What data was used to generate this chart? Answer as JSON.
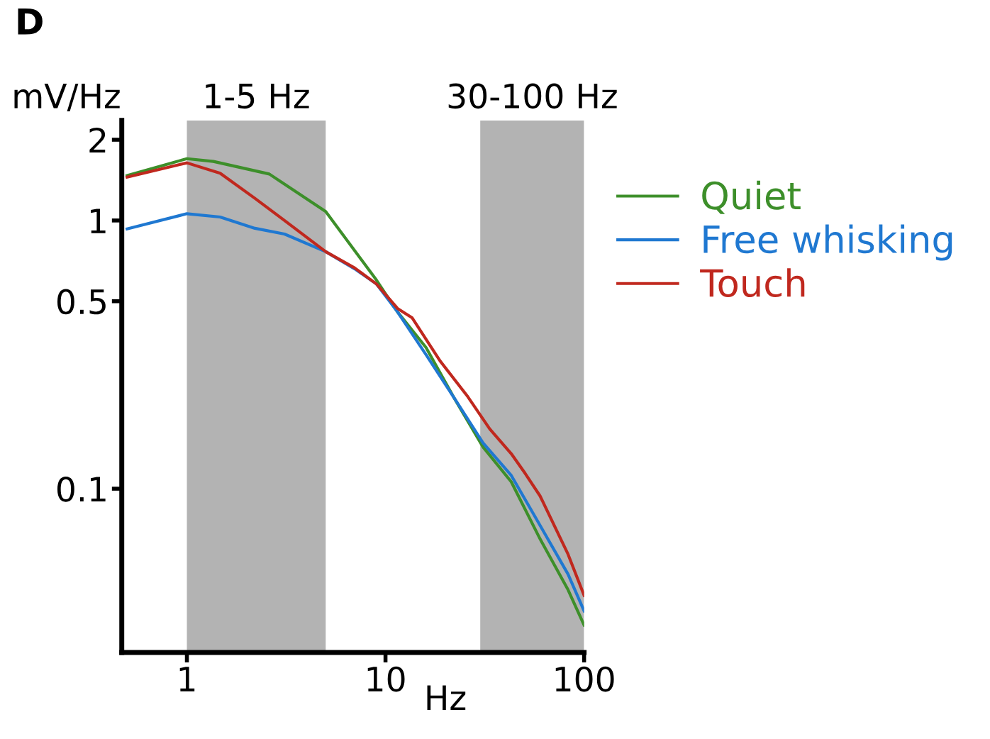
{
  "chart_data": {
    "type": "line",
    "title": "D",
    "ylabel": "mV/Hz",
    "xlabel": "Hz",
    "log": "xy",
    "xlim": [
      0.47,
      100
    ],
    "xticks": [
      1,
      10,
      100
    ],
    "ylim": [
      0.0245,
      2.36
    ],
    "yticks": [
      0.1,
      0.5,
      1,
      2
    ],
    "grid": false,
    "legend": "right",
    "line_style": "solid",
    "marker": "none",
    "bands": [
      {
        "axis": "x",
        "from": 1,
        "to": 5,
        "label": "1-5 Hz",
        "color": "#b3b3b3"
      },
      {
        "axis": "x",
        "from": 30,
        "to": 100,
        "label": "30-100 Hz",
        "color": "#b3b3b3"
      }
    ],
    "series": [
      {
        "name": "Quiet",
        "color": "#3d8f2a",
        "x": [
          0.5,
          1,
          1.36,
          2.6,
          5.0,
          9.0,
          11.5,
          16,
          22,
          31,
          43,
          60,
          83,
          100
        ],
        "values": [
          1.47,
          1.7,
          1.66,
          1.49,
          1.08,
          0.6,
          0.456,
          0.336,
          0.22,
          0.143,
          0.106,
          0.065,
          0.042,
          0.031
        ]
      },
      {
        "name": "Free whisking",
        "color": "#1f78d1",
        "x": [
          0.5,
          1,
          1.47,
          2.2,
          3.1,
          5.0,
          7.0,
          9.0,
          11.5,
          16,
          22,
          31,
          43,
          60,
          83,
          100
        ],
        "values": [
          0.93,
          1.06,
          1.03,
          0.935,
          0.89,
          0.765,
          0.66,
          0.58,
          0.456,
          0.316,
          0.22,
          0.148,
          0.112,
          0.073,
          0.048,
          0.035
        ]
      },
      {
        "name": "Touch",
        "color": "#c0281e",
        "x": [
          0.5,
          1,
          1.47,
          2.2,
          3.1,
          5.0,
          7.0,
          9.0,
          11.5,
          13.6,
          18.8,
          26,
          33.5,
          43,
          50.5,
          60,
          83,
          100
        ],
        "values": [
          1.45,
          1.64,
          1.5,
          1.21,
          1.0,
          0.765,
          0.665,
          0.58,
          0.47,
          0.434,
          0.3,
          0.22,
          0.167,
          0.135,
          0.114,
          0.094,
          0.057,
          0.04
        ]
      }
    ]
  }
}
